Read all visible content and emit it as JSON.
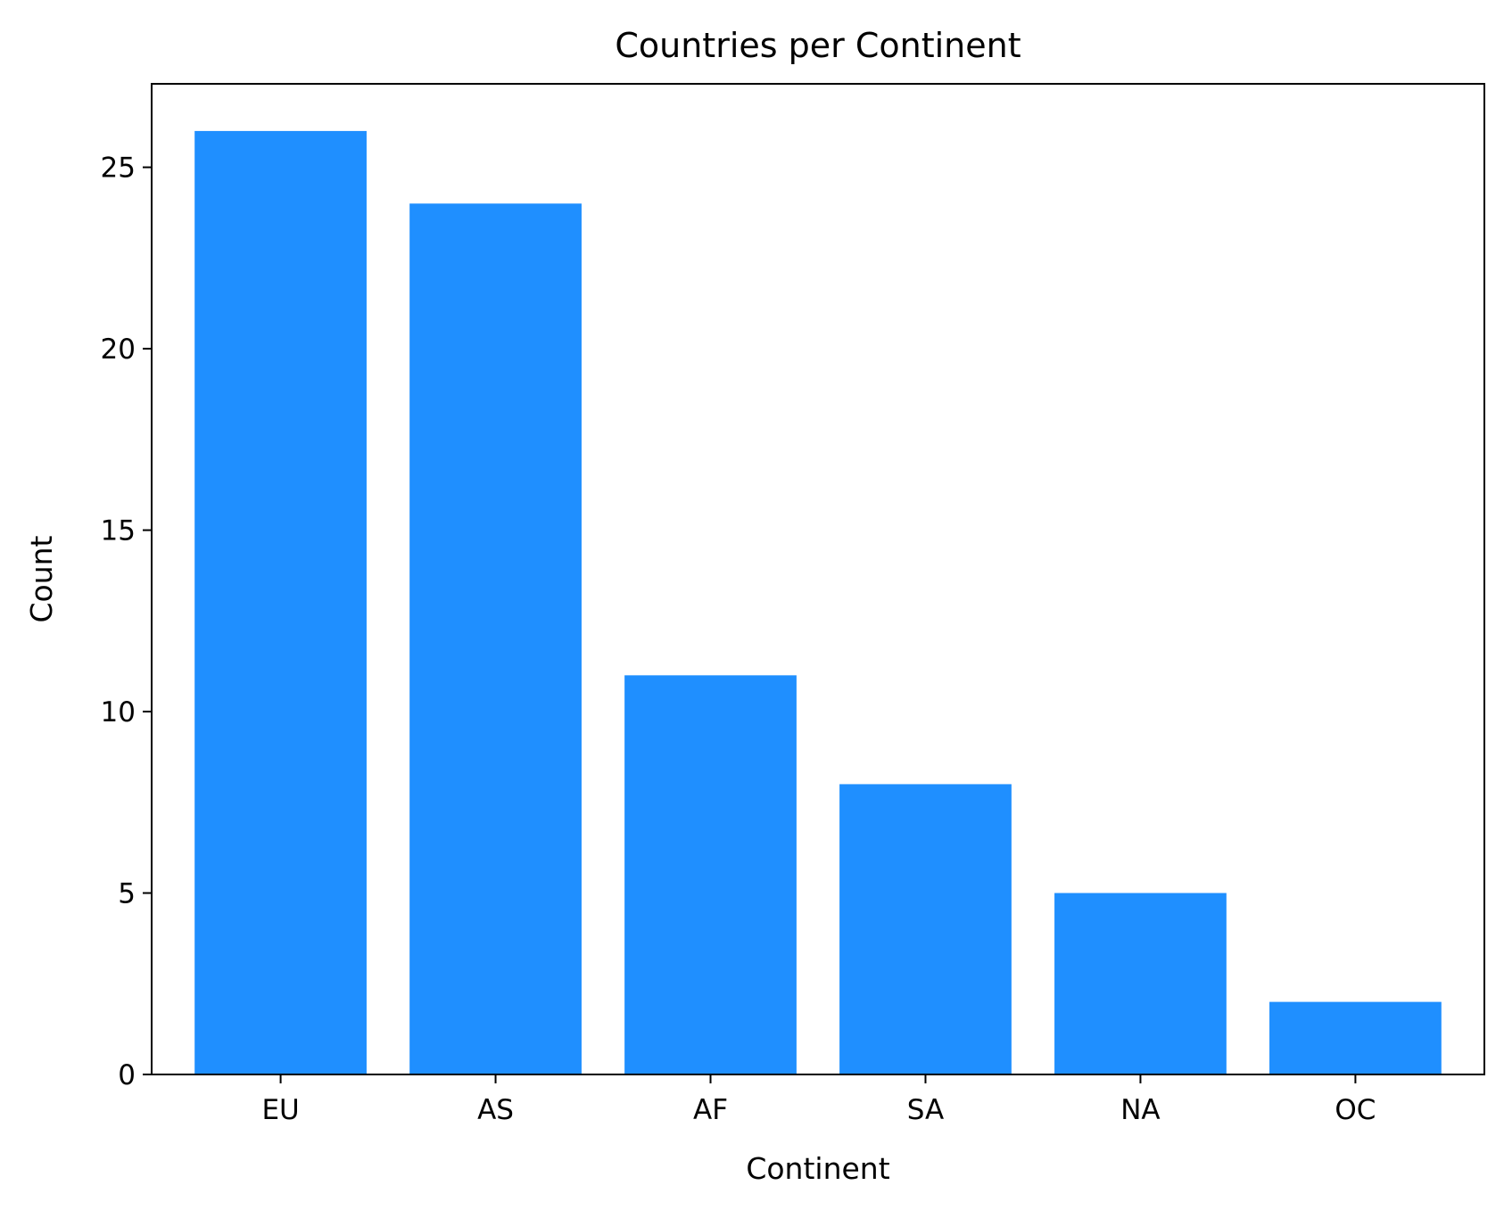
{
  "chart_data": {
    "type": "bar",
    "title": "Countries per Continent",
    "xlabel": "Continent",
    "ylabel": "Count",
    "categories": [
      "EU",
      "AS",
      "AF",
      "SA",
      "NA",
      "OC"
    ],
    "values": [
      26,
      24,
      11,
      8,
      5,
      2
    ],
    "ylim": [
      0,
      27.3
    ],
    "yticks": [
      0,
      5,
      10,
      15,
      20,
      25
    ],
    "grid": false,
    "colors": {
      "bar": "#1f8fff",
      "axis": "#000000"
    }
  }
}
